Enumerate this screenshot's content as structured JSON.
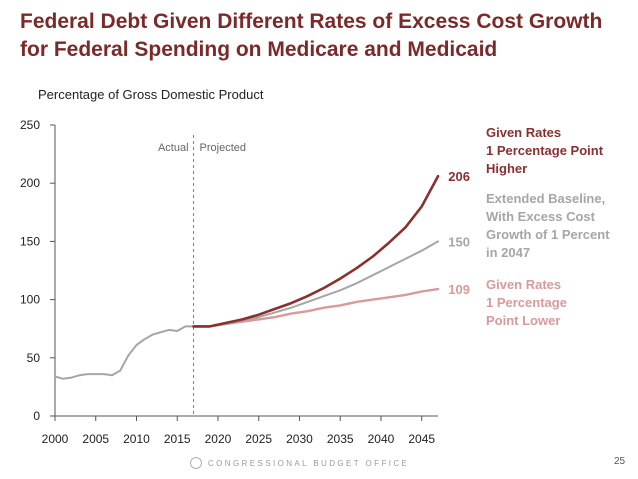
{
  "slide": {
    "title_line1": "Federal Debt Given Different Rates of Excess Cost Growth",
    "title_line2": "for Federal Spending on Medicare and Medicaid",
    "footer_text": "CONGRESSIONAL BUDGET OFFICE",
    "page_number": "25"
  },
  "colors": {
    "higher": "#8b2f2f",
    "baseline": "#a6a6a6",
    "lower": "#d89a9a",
    "title": "#7b2a2a",
    "divider": "#7f7f7f"
  },
  "chart_data": {
    "type": "line",
    "title": "Federal Debt Given Different Rates of Excess Cost Growth for Federal Spending on Medicare and Medicaid",
    "ylabel": "Percentage of Gross Domestic Product",
    "xlabel": "",
    "xlim": [
      2000,
      2047
    ],
    "ylim": [
      0,
      250
    ],
    "yticks": [
      0,
      50,
      100,
      150,
      200,
      250
    ],
    "xticks": [
      2000,
      2005,
      2010,
      2015,
      2020,
      2025,
      2030,
      2035,
      2040,
      2045
    ],
    "divider": {
      "x": 2017,
      "left_label": "Actual",
      "right_label": "Projected"
    },
    "actual": {
      "name": "Actual",
      "x": [
        2000,
        2001,
        2002,
        2003,
        2004,
        2005,
        2006,
        2007,
        2008,
        2009,
        2010,
        2011,
        2012,
        2013,
        2014,
        2015,
        2016,
        2017
      ],
      "values": [
        34,
        32,
        33,
        35,
        36,
        36,
        36,
        35,
        39,
        52,
        61,
        66,
        70,
        72,
        74,
        73,
        77,
        77
      ]
    },
    "series": [
      {
        "name": "Given Rates 1 Percentage Point Higher",
        "legend_lines": [
          "Given Rates",
          "1 Percentage Point",
          "Higher"
        ],
        "end_label": "206",
        "color_key": "higher",
        "x": [
          2017,
          2019,
          2021,
          2023,
          2025,
          2027,
          2029,
          2031,
          2033,
          2035,
          2037,
          2039,
          2041,
          2043,
          2045,
          2047
        ],
        "values": [
          77,
          77,
          80,
          83,
          87,
          92,
          97,
          103,
          110,
          118,
          127,
          137,
          149,
          162,
          180,
          206
        ]
      },
      {
        "name": "Extended Baseline, With Excess Cost Growth of 1 Percent in 2047",
        "legend_lines": [
          "Extended Baseline,",
          "With Excess Cost",
          "Growth of 1 Percent",
          "in 2047"
        ],
        "end_label": "150",
        "color_key": "baseline",
        "x": [
          2017,
          2019,
          2021,
          2023,
          2025,
          2027,
          2029,
          2031,
          2033,
          2035,
          2037,
          2039,
          2041,
          2043,
          2045,
          2047
        ],
        "values": [
          77,
          77,
          79,
          82,
          85,
          89,
          93,
          98,
          103,
          108,
          114,
          121,
          128,
          135,
          142,
          150
        ]
      },
      {
        "name": "Given Rates 1 Percentage Point Lower",
        "legend_lines": [
          "Given Rates",
          "1 Percentage",
          "Point Lower"
        ],
        "end_label": "109",
        "color_key": "lower",
        "x": [
          2017,
          2019,
          2021,
          2023,
          2025,
          2027,
          2029,
          2031,
          2033,
          2035,
          2037,
          2039,
          2041,
          2043,
          2045,
          2047
        ],
        "values": [
          77,
          77,
          79,
          81,
          83,
          85,
          88,
          90,
          93,
          95,
          98,
          100,
          102,
          104,
          107,
          109
        ]
      }
    ]
  }
}
